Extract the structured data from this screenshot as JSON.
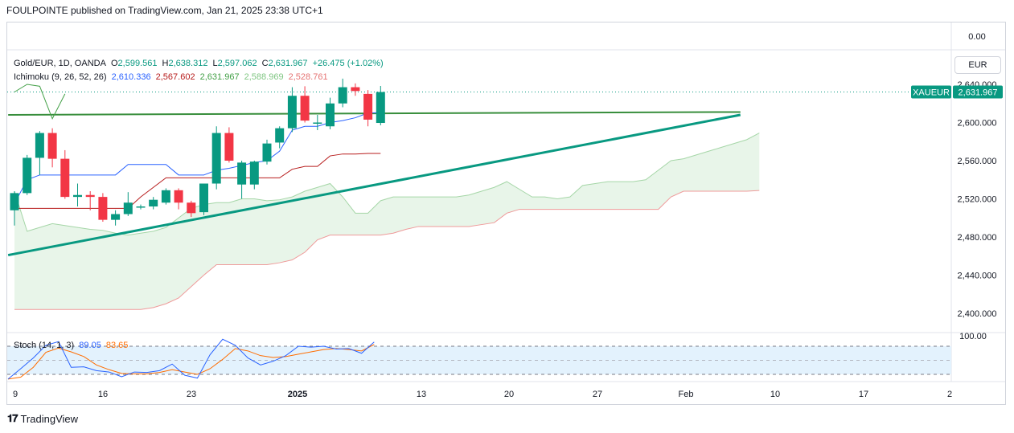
{
  "header": "FOULPOINTE published on TradingView.com, Jan 21, 2025 23:38 UTC+1",
  "currency_button": "EUR",
  "symbol_badge": "XAUEUR",
  "price_badge": "2,631.967",
  "legend_main": {
    "name": "Gold/EUR, 1D, OANDA",
    "o_label": "O",
    "o": "2,599.561",
    "h_label": "H",
    "h": "2,638.312",
    "l_label": "L",
    "l": "2,597.062",
    "c_label": "C",
    "c": "2,631.967",
    "change": "+26.475 (+1.02%)"
  },
  "legend_ichimoku": {
    "name": "Ichimoku (9, 26, 52, 26)",
    "v1": "2,610.336",
    "v2": "2,567.602",
    "v3": "2,631.967",
    "v4": "2,588.969",
    "v5": "2,528.761"
  },
  "legend_stoch": {
    "name": "Stoch (14, 1, 3)",
    "k": "89.05",
    "d": "83.65"
  },
  "logo_text": "TradingView",
  "colors": {
    "up": "#089981",
    "down": "#f23645",
    "tenkan": "#2962ff",
    "kijun": "#b71c1c",
    "lagging": "#43a047",
    "span_a": "#a5d6a7",
    "span_b": "#ef9a9a",
    "cloud": "#e8f5e9",
    "trendline": "#089981",
    "hline": "#388e3c",
    "stoch_k": "#2962ff",
    "stoch_d": "#ff6d00",
    "stoch_band": "#e3f2fd"
  },
  "chart_data": {
    "type": "candlestick",
    "title": "Gold/EUR, 1D, OANDA",
    "y_ticks": [
      "2,640.000",
      "2,600.000",
      "2,560.000",
      "2,520.000",
      "2,480.000",
      "2,440.000",
      "2,400.000"
    ],
    "y_top_label": "0.00",
    "x_ticks": [
      {
        "label": "9",
        "bold": false
      },
      {
        "label": "16",
        "bold": false
      },
      {
        "label": "23",
        "bold": false
      },
      {
        "label": "2025",
        "bold": true
      },
      {
        "label": "13",
        "bold": false
      },
      {
        "label": "20",
        "bold": false
      },
      {
        "label": "27",
        "bold": false
      },
      {
        "label": "Feb",
        "bold": false
      },
      {
        "label": "10",
        "bold": false
      },
      {
        "label": "17",
        "bold": false
      },
      {
        "label": "2",
        "bold": false
      }
    ],
    "candles": [
      {
        "o": 2508,
        "h": 2528,
        "l": 2492,
        "c": 2526
      },
      {
        "o": 2526,
        "h": 2566,
        "l": 2524,
        "c": 2563
      },
      {
        "o": 2563,
        "h": 2591,
        "l": 2545,
        "c": 2589
      },
      {
        "o": 2589,
        "h": 2594,
        "l": 2553,
        "c": 2562
      },
      {
        "o": 2562,
        "h": 2571,
        "l": 2520,
        "c": 2522
      },
      {
        "o": 2522,
        "h": 2536,
        "l": 2512,
        "c": 2524
      },
      {
        "o": 2524,
        "h": 2528,
        "l": 2508,
        "c": 2522
      },
      {
        "o": 2522,
        "h": 2526,
        "l": 2496,
        "c": 2498
      },
      {
        "o": 2498,
        "h": 2508,
        "l": 2492,
        "c": 2504
      },
      {
        "o": 2504,
        "h": 2527,
        "l": 2502,
        "c": 2516
      },
      {
        "o": 2512,
        "h": 2514,
        "l": 2509,
        "c": 2512
      },
      {
        "o": 2512,
        "h": 2522,
        "l": 2509,
        "c": 2519
      },
      {
        "o": 2516,
        "h": 2531,
        "l": 2514,
        "c": 2529
      },
      {
        "o": 2529,
        "h": 2531,
        "l": 2509,
        "c": 2516
      },
      {
        "o": 2516,
        "h": 2518,
        "l": 2501,
        "c": 2505
      },
      {
        "o": 2506,
        "h": 2536,
        "l": 2503,
        "c": 2536
      },
      {
        "o": 2536,
        "h": 2596,
        "l": 2530,
        "c": 2589
      },
      {
        "o": 2589,
        "h": 2595,
        "l": 2558,
        "c": 2560
      },
      {
        "o": 2535,
        "h": 2560,
        "l": 2520,
        "c": 2558
      },
      {
        "o": 2535,
        "h": 2560,
        "l": 2530,
        "c": 2559
      },
      {
        "o": 2559,
        "h": 2582,
        "l": 2556,
        "c": 2578
      },
      {
        "o": 2579,
        "h": 2596,
        "l": 2573,
        "c": 2594
      },
      {
        "o": 2594,
        "h": 2637,
        "l": 2590,
        "c": 2628
      },
      {
        "o": 2628,
        "h": 2638,
        "l": 2600,
        "c": 2602
      },
      {
        "o": 2600,
        "h": 2608,
        "l": 2592,
        "c": 2600
      },
      {
        "o": 2596,
        "h": 2626,
        "l": 2593,
        "c": 2620
      },
      {
        "o": 2620,
        "h": 2646,
        "l": 2616,
        "c": 2637
      },
      {
        "o": 2637,
        "h": 2641,
        "l": 2628,
        "c": 2633
      },
      {
        "o": 2630,
        "h": 2634,
        "l": 2596,
        "c": 2603
      },
      {
        "o": 2599.561,
        "h": 2638.312,
        "l": 2597.062,
        "c": 2631.967
      }
    ],
    "tenkan": [
      2515,
      2540,
      2545,
      2545,
      2545,
      2545,
      2545,
      2545,
      2545,
      2556,
      2556,
      2556,
      2556,
      2545,
      2545,
      2545,
      2550,
      2552,
      2555,
      2558,
      2560,
      2570,
      2592,
      2596,
      2596,
      2600,
      2602,
      2605,
      2610,
      2610.336
    ],
    "kijun": [
      2510,
      2510,
      2510,
      2510,
      2510,
      2510,
      2510,
      2510,
      2510,
      2510,
      2522,
      2532,
      2542,
      2542,
      2542,
      2542,
      2542,
      2542,
      2542,
      2542,
      2542,
      2542,
      2551,
      2554,
      2554,
      2565,
      2567,
      2567,
      2567.602,
      2567.602
    ],
    "ichimoku_lagging": [
      2632,
      2640,
      2638,
      2604,
      2630
    ],
    "span_a": [
      2528,
      2486,
      2490,
      2494,
      2492,
      2490,
      2488,
      2487,
      2484,
      2482,
      2484,
      2486,
      2490,
      2500,
      2510,
      2514,
      2516,
      2516,
      2520,
      2520,
      2518,
      2519,
      2522,
      2528,
      2532,
      2536,
      2522,
      2505,
      2505,
      2518,
      2522,
      2522,
      2522,
      2522,
      2522,
      2522,
      2524,
      2528,
      2532,
      2538,
      2530,
      2522,
      2522,
      2520,
      2522,
      2534,
      2536,
      2538,
      2538,
      2538,
      2540,
      2550,
      2560,
      2562,
      2566,
      2570,
      2574,
      2578,
      2582,
      2588.969
    ],
    "span_b": [
      2404,
      2404,
      2404,
      2404,
      2404,
      2404,
      2404,
      2404,
      2404,
      2404,
      2404,
      2406,
      2410,
      2416,
      2428,
      2440,
      2451,
      2451,
      2451,
      2451,
      2451,
      2453,
      2456,
      2464,
      2477,
      2482,
      2482,
      2482,
      2482,
      2482,
      2484,
      2488,
      2491,
      2491,
      2491,
      2491,
      2491,
      2493,
      2495,
      2505,
      2509,
      2509,
      2509,
      2509,
      2509,
      2509,
      2509,
      2509,
      2509,
      2509,
      2509,
      2509,
      2522,
      2528,
      2528,
      2528,
      2528,
      2528,
      2528,
      2528.761
    ],
    "trendline": {
      "from_index": -0.5,
      "from_y": 2461,
      "to_index": 57.5,
      "to_y": 2608
    },
    "horizontal_line": {
      "from_index": -0.5,
      "to_index": 57.5,
      "y": 2610
    },
    "stochastic": {
      "ylim": [
        0,
        100
      ],
      "upper_band": 80,
      "lower_band": 20,
      "y_label": "100.00",
      "k": [
        10,
        32,
        55,
        82,
        90,
        35,
        36,
        28,
        25,
        15,
        25,
        24,
        28,
        42,
        18,
        12,
        62,
        95,
        82,
        55,
        40,
        48,
        60,
        80,
        78,
        80,
        74,
        75,
        65,
        89.05
      ],
      "d": [
        10,
        14,
        35,
        67,
        76,
        68,
        58,
        40,
        30,
        22,
        21,
        21,
        24,
        30,
        25,
        20,
        32,
        52,
        75,
        70,
        60,
        56,
        58,
        63,
        68,
        73,
        75,
        73,
        70,
        83.65
      ]
    }
  }
}
